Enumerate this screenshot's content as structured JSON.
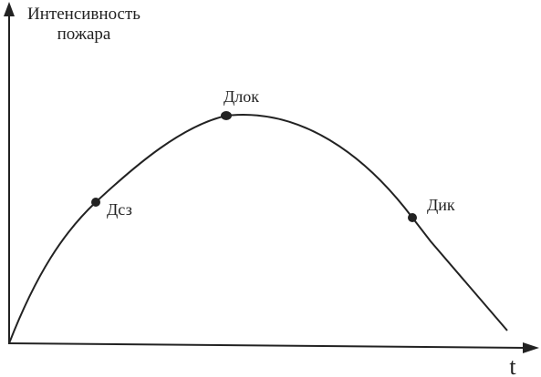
{
  "axes": {
    "y_label": [
      "Интенсивность",
      "пожара"
    ],
    "x_label": "t"
  },
  "points": [
    {
      "label": "Дсз"
    },
    {
      "label": "Длок"
    },
    {
      "label": "Дик"
    }
  ]
}
